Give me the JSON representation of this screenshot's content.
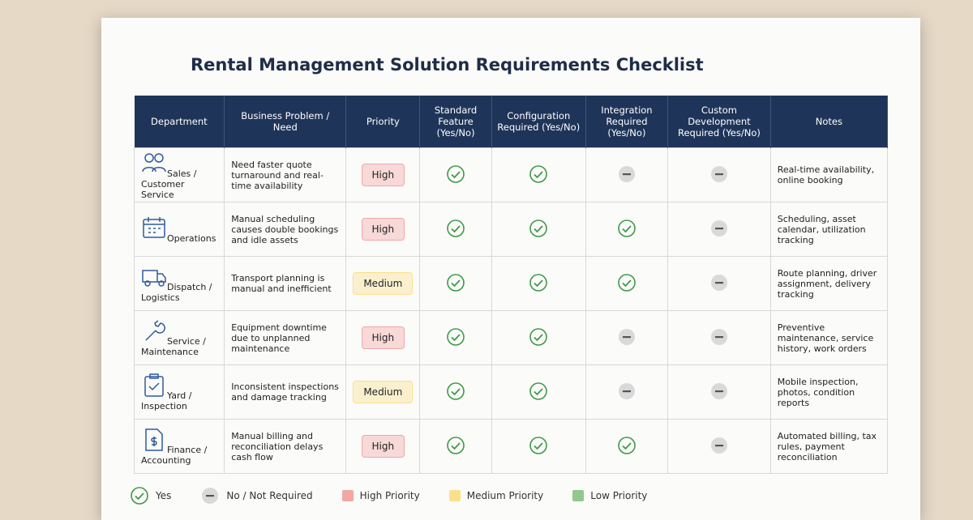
{
  "header": {
    "title": "Rental Management  Solution Requirements Checklist"
  },
  "table": {
    "columns": [
      "Department",
      "Business Problem / Need",
      "Priority",
      "Standard Feature (Yes/No)",
      "Configuration Required (Yes/No)",
      "Integration Required (Yes/No)",
      "Custom Development Required (Yes/No)",
      "Notes"
    ],
    "rows": [
      {
        "department": "Sales / Customer Service",
        "need": "Need faster quote turnaround and real-time availability",
        "priority": "High",
        "checks": [
          true,
          true,
          false,
          false
        ],
        "notes": "Real-time availability, online booking"
      },
      {
        "department": "Operations",
        "need": "Manual scheduling causes double bookings and idle assets",
        "priority": "High",
        "checks": [
          true,
          true,
          true,
          false
        ],
        "notes": "Scheduling, asset calendar, utilization tracking"
      },
      {
        "department": "Dispatch / Logistics",
        "need": "Transport planning is manual and inefficient",
        "priority": "Medium",
        "checks": [
          true,
          true,
          true,
          false
        ],
        "notes": "Route planning, driver assignment, delivery tracking"
      },
      {
        "department": "Service / Maintenance",
        "need": "Equipment downtime due to unplanned maintenance",
        "priority": "High",
        "checks": [
          true,
          true,
          false,
          false
        ],
        "notes": "Preventive maintenance, service history, work orders"
      },
      {
        "department": "Yard / Inspection",
        "need": "Inconsistent inspections and damage tracking",
        "priority": "Medium",
        "checks": [
          true,
          true,
          false,
          false
        ],
        "notes": "Mobile inspection, photos, condition reports"
      },
      {
        "department": "Finance / Accounting",
        "need": "Manual billing and reconciliation delays cash flow",
        "priority": "High",
        "checks": [
          true,
          true,
          true,
          false
        ],
        "notes": "Automated billing, tax rules, payment reconciliation"
      }
    ]
  },
  "legend": {
    "yes": "Yes",
    "no": "No / Not Required",
    "priorities": [
      {
        "label": "High Priority",
        "color": "#f2a7a4"
      },
      {
        "label": "Medium Priority",
        "color": "#fbe08c"
      },
      {
        "label": "Low Priority",
        "color": "#8fc98c"
      }
    ]
  }
}
